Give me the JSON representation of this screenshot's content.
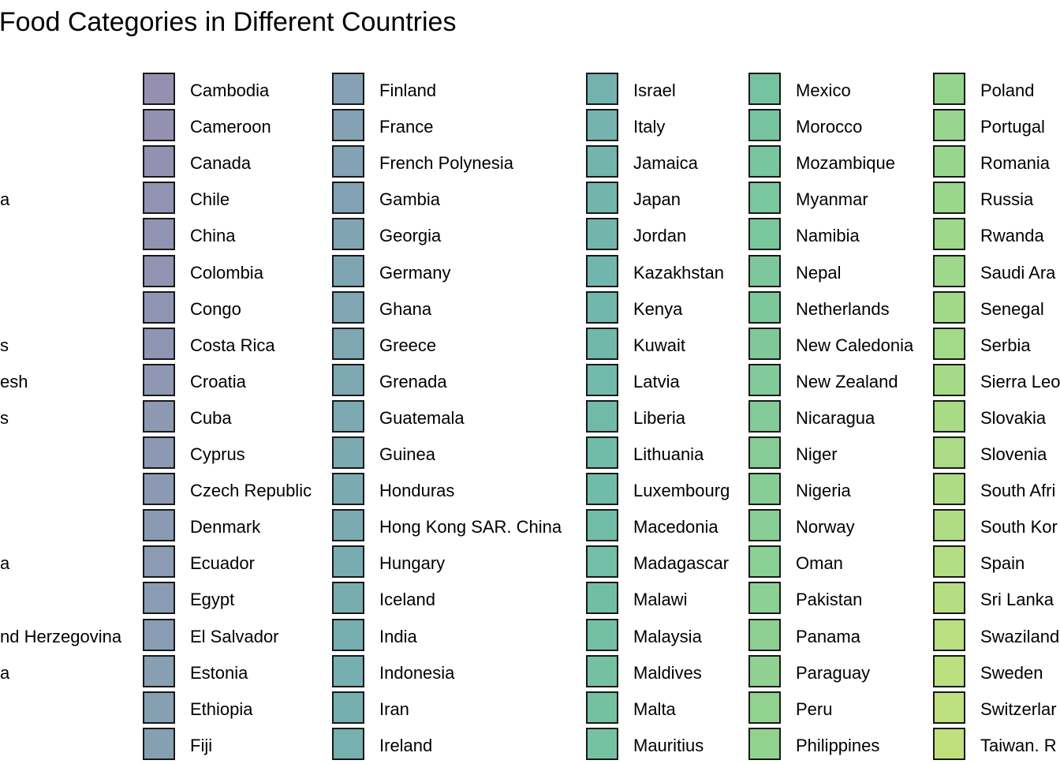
{
  "chart_data": {
    "type": "legend",
    "title": "f Food Categories in Different Countries",
    "clipped_left_labels": [
      {
        "row": 3,
        "text": "a"
      },
      {
        "row": 7,
        "text": "s"
      },
      {
        "row": 8,
        "text": "esh"
      },
      {
        "row": 9,
        "text": "s"
      },
      {
        "row": 13,
        "text": "a"
      },
      {
        "row": 15,
        "text": "nd Herzegovina"
      },
      {
        "row": 16,
        "text": "a"
      }
    ],
    "legend_columns": [
      {
        "entries": [
          {
            "label": "Cambodia",
            "color": "#8b84a8"
          },
          {
            "label": "Cameroon",
            "color": "#8985a9"
          },
          {
            "label": "Canada",
            "color": "#8886a9"
          },
          {
            "label": "Chile",
            "color": "#8787aa"
          },
          {
            "label": "China",
            "color": "#8688aa"
          },
          {
            "label": "Colombia",
            "color": "#8589aa"
          },
          {
            "label": "Congo",
            "color": "#848aab"
          },
          {
            "label": "Costa Rica",
            "color": "#838bab"
          },
          {
            "label": "Croatia",
            "color": "#828cab"
          },
          {
            "label": "Cuba",
            "color": "#818dab"
          },
          {
            "label": "Cyprus",
            "color": "#808eab"
          },
          {
            "label": "Czech Republic",
            "color": "#7f8fab"
          },
          {
            "label": "Denmark",
            "color": "#7e90ab"
          },
          {
            "label": "Ecuador",
            "color": "#7e91ab"
          },
          {
            "label": "Egypt",
            "color": "#7d92ab"
          },
          {
            "label": "El Salvador",
            "color": "#7c93ab"
          },
          {
            "label": "Estonia",
            "color": "#7b94ab"
          },
          {
            "label": "Ethiopia",
            "color": "#7a95ab"
          },
          {
            "label": "Fiji",
            "color": "#7996ab"
          }
        ]
      },
      {
        "entries": [
          {
            "label": "Finland",
            "color": "#7897ab"
          },
          {
            "label": "France",
            "color": "#7798ab"
          },
          {
            "label": "French Polynesia",
            "color": "#7699ab"
          },
          {
            "label": "Gambia",
            "color": "#759aab"
          },
          {
            "label": "Georgia",
            "color": "#749baa"
          },
          {
            "label": "Germany",
            "color": "#739caa"
          },
          {
            "label": "Ghana",
            "color": "#729daa"
          },
          {
            "label": "Greece",
            "color": "#719eaa"
          },
          {
            "label": "Grenada",
            "color": "#709faa"
          },
          {
            "label": "Guatemala",
            "color": "#6fa0aa"
          },
          {
            "label": "Guinea",
            "color": "#6ea1a9"
          },
          {
            "label": "Honduras",
            "color": "#6da2a9"
          },
          {
            "label": "Hong Kong SAR. China",
            "color": "#6ca3a9"
          },
          {
            "label": "Hungary",
            "color": "#6ba4a8"
          },
          {
            "label": "Iceland",
            "color": "#6aa5a8"
          },
          {
            "label": "India",
            "color": "#69a6a8"
          },
          {
            "label": "Indonesia",
            "color": "#68a7a7"
          },
          {
            "label": "Iran",
            "color": "#67a8a7"
          },
          {
            "label": "Ireland",
            "color": "#66a9a7"
          }
        ]
      },
      {
        "entries": [
          {
            "label": "Israel",
            "color": "#65aaa6"
          },
          {
            "label": "Italy",
            "color": "#65aba6"
          },
          {
            "label": "Jamaica",
            "color": "#64aca5"
          },
          {
            "label": "Japan",
            "color": "#63ada5"
          },
          {
            "label": "Jordan",
            "color": "#63aea4"
          },
          {
            "label": "Kazakhstan",
            "color": "#62afa4"
          },
          {
            "label": "Kenya",
            "color": "#62b0a3"
          },
          {
            "label": "Kuwait",
            "color": "#62b1a2"
          },
          {
            "label": "Latvia",
            "color": "#62b2a2"
          },
          {
            "label": "Liberia",
            "color": "#62b3a1"
          },
          {
            "label": "Lithuania",
            "color": "#62b4a0"
          },
          {
            "label": "Luxembourg",
            "color": "#62b59f"
          },
          {
            "label": "Macedonia",
            "color": "#62b69e"
          },
          {
            "label": "Madagascar",
            "color": "#63b79d"
          },
          {
            "label": "Malawi",
            "color": "#63b89c"
          },
          {
            "label": "Malaysia",
            "color": "#64b99b"
          },
          {
            "label": "Maldives",
            "color": "#65ba9a"
          },
          {
            "label": "Malta",
            "color": "#66bb99"
          },
          {
            "label": "Mauritius",
            "color": "#67bc98"
          }
        ]
      },
      {
        "entries": [
          {
            "label": "Mexico",
            "color": "#68bd97"
          },
          {
            "label": "Morocco",
            "color": "#69be96"
          },
          {
            "label": "Mozambique",
            "color": "#6abf95"
          },
          {
            "label": "Myanmar",
            "color": "#6cc094"
          },
          {
            "label": "Namibia",
            "color": "#6dc193"
          },
          {
            "label": "Nepal",
            "color": "#6fc292"
          },
          {
            "label": "Netherlands",
            "color": "#70c391"
          },
          {
            "label": "New Caledonia",
            "color": "#72c48f"
          },
          {
            "label": "New Zealand",
            "color": "#74c58e"
          },
          {
            "label": "Nicaragua",
            "color": "#76c68d"
          },
          {
            "label": "Niger",
            "color": "#78c78c"
          },
          {
            "label": "Nigeria",
            "color": "#7ac88b"
          },
          {
            "label": "Norway",
            "color": "#7cc98a"
          },
          {
            "label": "Oman",
            "color": "#7eca89"
          },
          {
            "label": "Pakistan",
            "color": "#80cb88"
          },
          {
            "label": "Panama",
            "color": "#82cc87"
          },
          {
            "label": "Paraguay",
            "color": "#84cd86"
          },
          {
            "label": "Peru",
            "color": "#86ce85"
          },
          {
            "label": "Philippines",
            "color": "#88cf84"
          }
        ]
      },
      {
        "entries": [
          {
            "label": "Poland",
            "color": "#8ad083"
          },
          {
            "label": "Portugal",
            "color": "#8cd182"
          },
          {
            "label": "Romania",
            "color": "#8ed281"
          },
          {
            "label": "Russia",
            "color": "#90d380"
          },
          {
            "label": "Rwanda",
            "color": "#93d47f"
          },
          {
            "label": "Saudi Ara",
            "color": "#95d47e"
          },
          {
            "label": "Senegal",
            "color": "#98d57d"
          },
          {
            "label": "Serbia",
            "color": "#9ad67c"
          },
          {
            "label": "Sierra Leo",
            "color": "#9dd77b"
          },
          {
            "label": "Slovakia",
            "color": "#a0d87a"
          },
          {
            "label": "Slovenia",
            "color": "#a2d879"
          },
          {
            "label": "South Afri",
            "color": "#a5d978"
          },
          {
            "label": "South Kor",
            "color": "#a8da77"
          },
          {
            "label": "Spain",
            "color": "#abdb76"
          },
          {
            "label": "Sri Lanka",
            "color": "#aedb75"
          },
          {
            "label": "Swaziland",
            "color": "#b1dc74"
          },
          {
            "label": "Sweden",
            "color": "#b4dd73"
          },
          {
            "label": "Switzerlar",
            "color": "#b7dd72"
          },
          {
            "label": "Taiwan. R",
            "color": "#badd71"
          }
        ]
      }
    ]
  }
}
